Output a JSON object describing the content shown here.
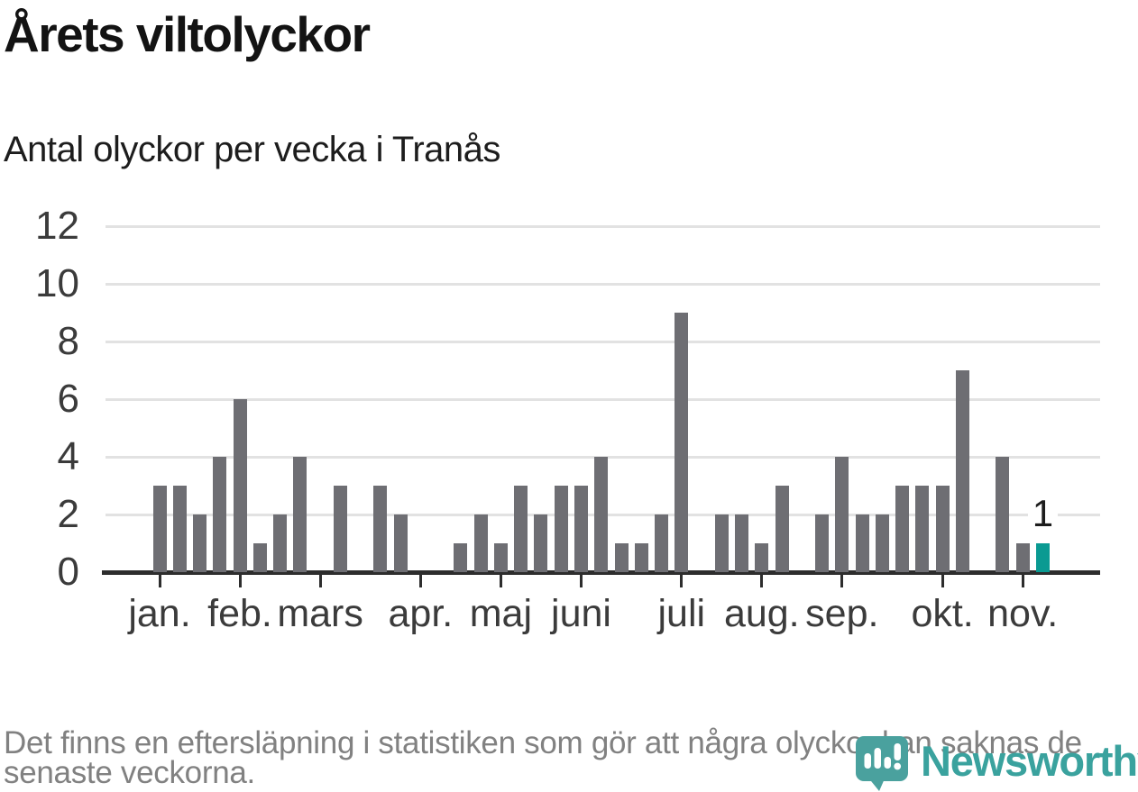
{
  "header": {
    "title": "Årets viltolyckor",
    "subtitle": "Antal olyckor per vecka i Tranås"
  },
  "footer": {
    "line1": "Det finns en eftersläpning i statistiken som gör att några olyckor kan saknas de",
    "line2": "senaste veckorna."
  },
  "logo": {
    "brand": "Newsworthy"
  },
  "colors": {
    "title": "#131313",
    "subtitle": "#1d1d1d",
    "bar": "#6e6e73",
    "accent": "#0a9a92",
    "grid": "#e2e2e2",
    "axis": "#2d2d2d",
    "tick_text": "#3b3b3b",
    "annotation": "#1d1d1d",
    "footer": "#818181",
    "logo_mark": "#4aa19e",
    "logo_text": "#3aa29e",
    "background": "#ffffff"
  },
  "chart_data": {
    "type": "bar",
    "title": "Årets viltolyckor",
    "subtitle": "Antal olyckor per vecka i Tranås",
    "xlabel": "",
    "ylabel": "",
    "x_unit": "vecka",
    "ylim": [
      0,
      12
    ],
    "yticks": [
      0,
      2,
      4,
      6,
      8,
      10,
      12
    ],
    "ytick_labels": [
      "0",
      "2",
      "4",
      "6",
      "8",
      "10",
      "12"
    ],
    "grid": true,
    "legend": "none",
    "values": [
      3,
      3,
      2,
      4,
      6,
      1,
      2,
      4,
      0,
      3,
      0,
      3,
      2,
      0,
      0,
      1,
      2,
      1,
      3,
      2,
      3,
      3,
      4,
      1,
      1,
      2,
      9,
      0,
      2,
      2,
      1,
      3,
      0,
      2,
      4,
      2,
      2,
      3,
      3,
      3,
      7,
      0,
      4,
      1,
      1
    ],
    "months": [
      {
        "label": "jan.",
        "first_week_index": 0
      },
      {
        "label": "feb.",
        "first_week_index": 4
      },
      {
        "label": "mars",
        "first_week_index": 8
      },
      {
        "label": "apr.",
        "first_week_index": 13
      },
      {
        "label": "maj",
        "first_week_index": 17
      },
      {
        "label": "juni",
        "first_week_index": 21
      },
      {
        "label": "juli",
        "first_week_index": 26
      },
      {
        "label": "aug.",
        "first_week_index": 30
      },
      {
        "label": "sep.",
        "first_week_index": 34
      },
      {
        "label": "okt.",
        "first_week_index": 39
      },
      {
        "label": "nov.",
        "first_week_index": 43
      }
    ],
    "values_by_month": {
      "jan.": [
        3,
        3,
        2,
        4
      ],
      "feb.": [
        6,
        1,
        2,
        4
      ],
      "mars": [
        0,
        3,
        0,
        3,
        2
      ],
      "apr.": [
        0,
        0,
        1,
        2
      ],
      "maj": [
        1,
        3,
        2,
        3
      ],
      "juni": [
        3,
        4,
        1,
        1,
        2
      ],
      "juli": [
        9,
        0,
        2,
        2
      ],
      "aug.": [
        1,
        3,
        0,
        2
      ],
      "sep.": [
        4,
        2,
        2,
        3,
        3
      ],
      "okt.": [
        3,
        7,
        0,
        4
      ],
      "nov.": [
        1,
        1
      ]
    },
    "highlight": {
      "index": 44,
      "value": 1,
      "label": "1"
    }
  }
}
